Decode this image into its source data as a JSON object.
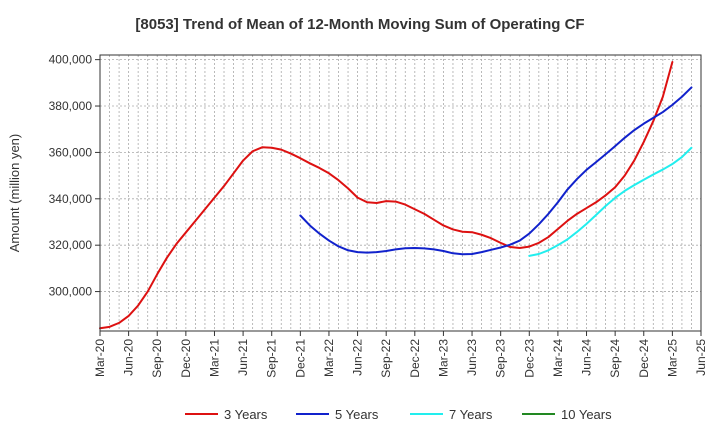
{
  "chart_data": {
    "type": "line",
    "title": "[8053]  Trend of Mean of 12-Month Moving Sum of Operating CF",
    "xlabel": "",
    "ylabel": "Amount (million yen)",
    "ylim": [
      283000,
      402000
    ],
    "y_ticks": [
      300000,
      320000,
      340000,
      360000,
      380000,
      400000
    ],
    "y_tick_labels": [
      "300,000",
      "320,000",
      "340,000",
      "360,000",
      "380,000",
      "400,000"
    ],
    "x_tick_labels": [
      "Mar-20",
      "Jun-20",
      "Sep-20",
      "Dec-20",
      "Mar-21",
      "Jun-21",
      "Sep-21",
      "Dec-21",
      "Mar-22",
      "Jun-22",
      "Sep-22",
      "Dec-22",
      "Mar-23",
      "Jun-23",
      "Sep-23",
      "Dec-23",
      "Mar-24",
      "Jun-24",
      "Sep-24",
      "Dec-24",
      "Mar-25",
      "Jun-25"
    ],
    "x_range_months": [
      0,
      63
    ],
    "grid": true,
    "legend_position": "bottom",
    "series": [
      {
        "name": "3 Years",
        "color": "#dd1111",
        "start_month": 0,
        "values": [
          284200,
          284800,
          286500,
          289500,
          294000,
          300000,
          307500,
          314500,
          320500,
          325500,
          330500,
          335500,
          340500,
          345500,
          351000,
          356500,
          360500,
          362200,
          362000,
          361200,
          359500,
          357500,
          355300,
          353300,
          351000,
          348000,
          344500,
          340500,
          338500,
          338200,
          339000,
          338800,
          337500,
          335500,
          333500,
          331000,
          328500,
          326800,
          325800,
          325600,
          324500,
          323000,
          321000,
          319200,
          318800,
          319400,
          321000,
          323500,
          327000,
          330500,
          333500,
          336000,
          338500,
          341500,
          345000,
          350000,
          356500,
          364500,
          373500,
          384000,
          399000
        ]
      },
      {
        "name": "5 Years",
        "color": "#1122cc",
        "start_month": 21,
        "values": [
          332800,
          328500,
          325000,
          322000,
          319500,
          317800,
          317000,
          316800,
          317000,
          317500,
          318200,
          318700,
          318800,
          318600,
          318200,
          317500,
          316500,
          316100,
          316200,
          317000,
          318000,
          319000,
          320200,
          322000,
          325000,
          329000,
          333500,
          338500,
          344000,
          348500,
          352500,
          355800,
          359200,
          362700,
          366300,
          369600,
          372400,
          374900,
          377400,
          380500,
          384000,
          388000
        ]
      },
      {
        "name": "7 Years",
        "color": "#22eeee",
        "start_month": 45,
        "values": [
          315400,
          316200,
          317800,
          320000,
          322500,
          325700,
          329200,
          333000,
          336900,
          340400,
          343400,
          345900,
          348200,
          350500,
          352600,
          355000,
          358000,
          362000
        ]
      },
      {
        "name": "10 Years",
        "color": "#228822",
        "start_month": 0,
        "values": []
      }
    ]
  }
}
